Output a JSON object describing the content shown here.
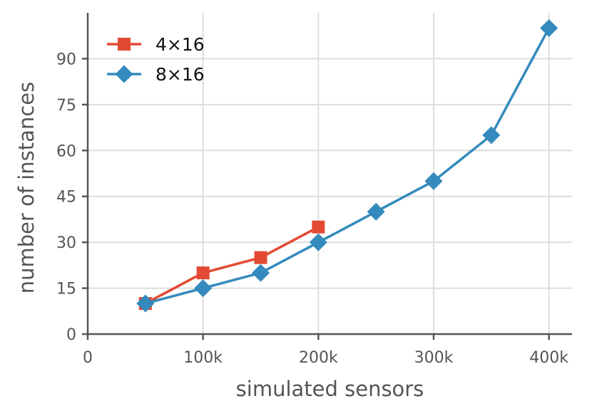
{
  "chart_data": {
    "type": "line",
    "xlabel": "simulated sensors",
    "ylabel": "number of instances",
    "xlim": [
      0,
      420000
    ],
    "ylim": [
      0,
      105
    ],
    "xticks": [
      {
        "value": 0,
        "label": "0"
      },
      {
        "value": 100000,
        "label": "100k"
      },
      {
        "value": 200000,
        "label": "200k"
      },
      {
        "value": 300000,
        "label": "300k"
      },
      {
        "value": 400000,
        "label": "400k"
      }
    ],
    "yticks": [
      {
        "value": 0,
        "label": "0"
      },
      {
        "value": 15,
        "label": "15"
      },
      {
        "value": 30,
        "label": "30"
      },
      {
        "value": 45,
        "label": "45"
      },
      {
        "value": 60,
        "label": "60"
      },
      {
        "value": 75,
        "label": "75"
      },
      {
        "value": 90,
        "label": "90"
      }
    ],
    "grid": true,
    "legend_position": "top-left",
    "series": [
      {
        "name": "4×16",
        "color": "#e24a33",
        "marker": "square",
        "x": [
          50000,
          100000,
          150000,
          200000
        ],
        "y": [
          10,
          20,
          25,
          35
        ]
      },
      {
        "name": "8×16",
        "color": "#348abd",
        "marker": "diamond",
        "x": [
          50000,
          100000,
          150000,
          200000,
          250000,
          300000,
          350000,
          400000
        ],
        "y": [
          10,
          15,
          20,
          30,
          40,
          50,
          65,
          100
        ]
      }
    ]
  }
}
